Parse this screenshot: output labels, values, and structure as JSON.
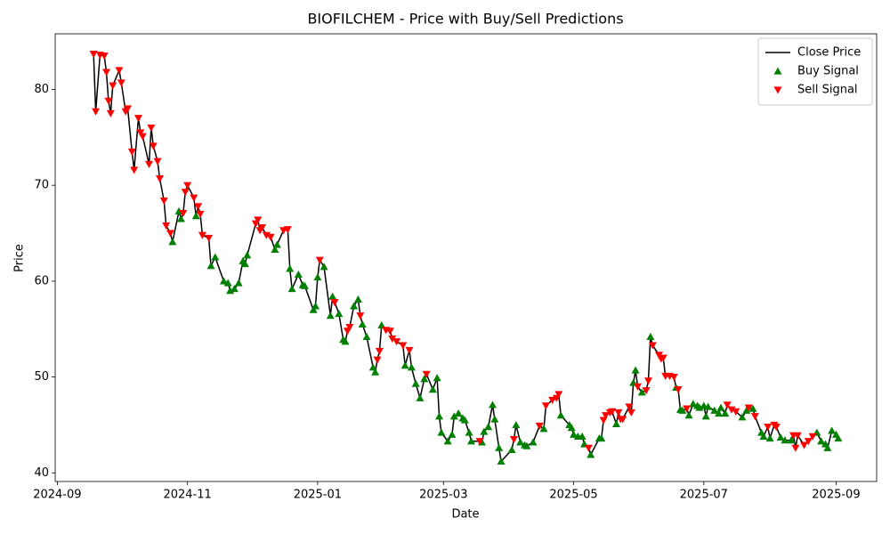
{
  "chart_data": {
    "type": "line",
    "title": "BIOFILCHEM - Price with Buy/Sell Predictions",
    "x_label": "Date",
    "y_label": "Price",
    "xlim": [
      "2024-08-31",
      "2025-09-20"
    ],
    "xticks": [
      {
        "value": "2024-09-01",
        "label": "2024-09"
      },
      {
        "value": "2024-11-01",
        "label": "2024-11"
      },
      {
        "value": "2025-01-01",
        "label": "2025-01"
      },
      {
        "value": "2025-03-01",
        "label": "2025-03"
      },
      {
        "value": "2025-05-01",
        "label": "2025-05"
      },
      {
        "value": "2025-07-01",
        "label": "2025-07"
      },
      {
        "value": "2025-09-01",
        "label": "2025-09"
      }
    ],
    "ylim": [
      39.1,
      85.8
    ],
    "yticks": [
      40,
      50,
      60,
      70,
      80
    ],
    "grid": false,
    "legend": "upper right",
    "series": [
      {
        "name": "Close Price",
        "type": "line",
        "color": "#000000",
        "x": [
          "2024-09-18",
          "2024-09-19",
          "2024-09-21",
          "2024-09-23",
          "2024-09-24",
          "2024-09-25",
          "2024-09-26",
          "2024-09-27",
          "2024-09-30",
          "2024-10-01",
          "2024-10-03",
          "2024-10-04",
          "2024-10-06",
          "2024-10-07",
          "2024-10-09",
          "2024-10-10",
          "2024-10-11",
          "2024-10-14",
          "2024-10-15",
          "2024-10-16",
          "2024-10-18",
          "2024-10-19",
          "2024-10-21",
          "2024-10-22",
          "2024-10-24",
          "2024-10-25",
          "2024-10-28",
          "2024-10-29",
          "2024-10-30",
          "2024-10-31",
          "2024-11-01",
          "2024-11-04",
          "2024-11-05",
          "2024-11-06",
          "2024-11-07",
          "2024-11-08",
          "2024-11-11",
          "2024-11-12",
          "2024-11-14",
          "2024-11-18",
          "2024-11-20",
          "2024-11-21",
          "2024-11-23",
          "2024-11-25",
          "2024-11-27",
          "2024-11-28",
          "2024-11-29",
          "2024-12-03",
          "2024-12-04",
          "2024-12-05",
          "2024-12-06",
          "2024-12-08",
          "2024-12-10",
          "2024-12-12",
          "2024-12-13",
          "2024-12-16",
          "2024-12-18",
          "2024-12-19",
          "2024-12-20",
          "2024-12-23",
          "2024-12-25",
          "2024-12-26",
          "2024-12-30",
          "2024-12-31",
          "2025-01-01",
          "2025-01-02",
          "2025-01-04",
          "2025-01-07",
          "2025-01-08",
          "2025-01-09",
          "2025-01-11",
          "2025-01-13",
          "2025-01-14",
          "2025-01-15",
          "2025-01-16",
          "2025-01-18",
          "2025-01-20",
          "2025-01-21",
          "2025-01-22",
          "2025-01-24",
          "2025-01-27",
          "2025-01-28",
          "2025-01-29",
          "2025-01-30",
          "2025-01-31",
          "2025-02-02",
          "2025-02-04",
          "2025-02-05",
          "2025-02-07",
          "2025-02-10",
          "2025-02-11",
          "2025-02-13",
          "2025-02-14",
          "2025-02-16",
          "2025-02-18",
          "2025-02-20",
          "2025-02-21",
          "2025-02-24",
          "2025-02-26",
          "2025-02-27",
          "2025-02-28",
          "2025-03-03",
          "2025-03-05",
          "2025-03-06",
          "2025-03-08",
          "2025-03-10",
          "2025-03-11",
          "2025-03-13",
          "2025-03-14",
          "2025-03-18",
          "2025-03-19",
          "2025-03-20",
          "2025-03-22",
          "2025-03-24",
          "2025-03-25",
          "2025-03-27",
          "2025-03-28",
          "2025-04-02",
          "2025-04-03",
          "2025-04-04",
          "2025-04-06",
          "2025-04-08",
          "2025-04-09",
          "2025-04-12",
          "2025-04-15",
          "2025-04-17",
          "2025-04-18",
          "2025-04-21",
          "2025-04-23",
          "2025-04-24",
          "2025-04-25",
          "2025-04-29",
          "2025-04-30",
          "2025-05-01",
          "2025-05-03",
          "2025-05-05",
          "2025-05-06",
          "2025-05-08",
          "2025-05-09",
          "2025-05-13",
          "2025-05-14",
          "2025-05-15",
          "2025-05-16",
          "2025-05-18",
          "2025-05-19",
          "2025-05-21",
          "2025-05-22",
          "2025-05-23",
          "2025-05-24",
          "2025-05-27",
          "2025-05-28",
          "2025-05-29",
          "2025-05-30",
          "2025-05-31",
          "2025-06-02",
          "2025-06-04",
          "2025-06-05",
          "2025-06-06",
          "2025-06-07",
          "2025-06-10",
          "2025-06-11",
          "2025-06-12",
          "2025-06-13",
          "2025-06-15",
          "2025-06-17",
          "2025-06-18",
          "2025-06-19",
          "2025-06-20",
          "2025-06-21",
          "2025-06-23",
          "2025-06-24",
          "2025-06-26",
          "2025-06-28",
          "2025-06-29",
          "2025-07-01",
          "2025-07-02",
          "2025-07-03",
          "2025-07-06",
          "2025-07-08",
          "2025-07-09",
          "2025-07-11",
          "2025-07-12",
          "2025-07-14",
          "2025-07-16",
          "2025-07-19",
          "2025-07-21",
          "2025-07-22",
          "2025-07-24",
          "2025-07-25",
          "2025-07-28",
          "2025-07-29",
          "2025-07-31",
          "2025-08-01",
          "2025-08-03",
          "2025-08-04",
          "2025-08-06",
          "2025-08-08",
          "2025-08-11",
          "2025-08-12",
          "2025-08-13",
          "2025-08-14",
          "2025-08-17",
          "2025-08-19",
          "2025-08-21",
          "2025-08-23",
          "2025-08-25",
          "2025-08-27",
          "2025-08-28",
          "2025-08-30",
          "2025-09-01",
          "2025-09-02"
        ],
        "values": [
          83.7,
          77.7,
          83.6,
          83.5,
          81.8,
          78.8,
          77.5,
          80.4,
          82.0,
          80.7,
          77.7,
          78.0,
          73.5,
          71.6,
          77.0,
          75.5,
          75.1,
          72.2,
          76.0,
          74.1,
          72.5,
          70.7,
          68.4,
          65.8,
          65.0,
          64.1,
          67.3,
          66.5,
          67.1,
          69.3,
          70.0,
          68.7,
          66.8,
          67.8,
          67.0,
          64.8,
          64.5,
          61.6,
          62.5,
          60.0,
          59.8,
          59.0,
          59.2,
          59.8,
          62.1,
          61.8,
          62.7,
          66.0,
          66.4,
          65.3,
          65.6,
          64.8,
          64.6,
          63.3,
          63.8,
          65.3,
          65.4,
          61.3,
          59.2,
          60.7,
          59.6,
          59.5,
          57.0,
          57.4,
          60.4,
          62.2,
          61.5,
          56.4,
          58.4,
          57.8,
          56.6,
          53.9,
          53.7,
          54.8,
          55.2,
          57.4,
          58.1,
          56.4,
          55.5,
          54.2,
          51.0,
          50.5,
          51.8,
          52.7,
          55.4,
          54.9,
          54.8,
          54.0,
          53.7,
          53.3,
          51.2,
          52.8,
          51.0,
          49.3,
          47.8,
          49.8,
          50.3,
          48.7,
          49.9,
          45.9,
          44.2,
          43.3,
          44.0,
          45.9,
          46.2,
          45.7,
          45.5,
          44.2,
          43.3,
          43.3,
          43.2,
          44.3,
          44.8,
          47.1,
          45.6,
          42.6,
          41.2,
          42.4,
          43.5,
          45.0,
          43.2,
          42.9,
          42.8,
          43.2,
          44.9,
          44.6,
          47.0,
          47.6,
          47.8,
          48.2,
          46.0,
          45.0,
          44.7,
          44.0,
          43.8,
          43.8,
          43.0,
          42.6,
          41.9,
          43.6,
          43.6,
          45.5,
          46.0,
          46.3,
          46.4,
          45.1,
          46.3,
          45.6,
          45.6,
          46.9,
          46.3,
          49.4,
          50.7,
          49.0,
          48.4,
          48.6,
          49.6,
          54.2,
          53.3,
          52.3,
          51.9,
          52.0,
          50.1,
          50.1,
          50.0,
          48.9,
          48.7,
          46.6,
          46.5,
          46.7,
          46.0,
          47.2,
          47.0,
          46.8,
          47.0,
          45.9,
          46.9,
          46.5,
          46.2,
          46.8,
          46.2,
          47.1,
          46.6,
          46.4,
          45.8,
          46.5,
          46.8,
          46.7,
          45.9,
          44.2,
          43.8,
          44.8,
          43.6,
          45.0,
          44.8,
          43.7,
          43.4,
          43.4,
          43.9,
          42.6,
          43.9,
          42.9,
          43.3,
          43.8,
          44.2,
          43.3,
          43.0,
          42.6,
          44.4,
          44.0,
          43.6
        ]
      },
      {
        "name": "Buy Signal",
        "type": "scatter",
        "marker": "triangle-up",
        "color": "#008000",
        "x": [
          "2024-10-25",
          "2024-10-28",
          "2024-10-29",
          "2024-11-05",
          "2024-11-12",
          "2024-11-14",
          "2024-11-18",
          "2024-11-20",
          "2024-11-21",
          "2024-11-23",
          "2024-11-25",
          "2024-11-27",
          "2024-11-28",
          "2024-11-29",
          "2024-12-12",
          "2024-12-13",
          "2024-12-19",
          "2024-12-20",
          "2024-12-23",
          "2024-12-25",
          "2024-12-26",
          "2024-12-30",
          "2024-12-31",
          "2025-01-01",
          "2025-01-04",
          "2025-01-07",
          "2025-01-08",
          "2025-01-11",
          "2025-01-13",
          "2025-01-14",
          "2025-01-18",
          "2025-01-20",
          "2025-01-22",
          "2025-01-24",
          "2025-01-27",
          "2025-01-28",
          "2025-01-31",
          "2025-02-11",
          "2025-02-14",
          "2025-02-16",
          "2025-02-18",
          "2025-02-20",
          "2025-02-24",
          "2025-02-26",
          "2025-02-27",
          "2025-02-28",
          "2025-03-03",
          "2025-03-05",
          "2025-03-06",
          "2025-03-08",
          "2025-03-10",
          "2025-03-11",
          "2025-03-13",
          "2025-03-14",
          "2025-03-19",
          "2025-03-20",
          "2025-03-22",
          "2025-03-24",
          "2025-03-25",
          "2025-03-27",
          "2025-03-28",
          "2025-04-02",
          "2025-04-04",
          "2025-04-06",
          "2025-04-08",
          "2025-04-09",
          "2025-04-12",
          "2025-04-17",
          "2025-04-25",
          "2025-04-29",
          "2025-04-30",
          "2025-05-01",
          "2025-05-03",
          "2025-05-05",
          "2025-05-06",
          "2025-05-09",
          "2025-05-13",
          "2025-05-14",
          "2025-05-21",
          "2025-05-29",
          "2025-05-30",
          "2025-06-02",
          "2025-06-06",
          "2025-06-18",
          "2025-06-20",
          "2025-06-21",
          "2025-06-24",
          "2025-06-26",
          "2025-06-28",
          "2025-06-29",
          "2025-07-01",
          "2025-07-02",
          "2025-07-03",
          "2025-07-06",
          "2025-07-08",
          "2025-07-09",
          "2025-07-11",
          "2025-07-19",
          "2025-07-21",
          "2025-07-24",
          "2025-07-28",
          "2025-07-29",
          "2025-08-01",
          "2025-08-06",
          "2025-08-08",
          "2025-08-11",
          "2025-08-23",
          "2025-08-25",
          "2025-08-27",
          "2025-08-28",
          "2025-08-30",
          "2025-09-01",
          "2025-09-02"
        ],
        "values": [
          64.1,
          67.3,
          66.5,
          66.8,
          61.6,
          62.5,
          60.0,
          59.8,
          59.0,
          59.2,
          59.8,
          62.1,
          61.8,
          62.7,
          63.3,
          63.8,
          61.3,
          59.2,
          60.7,
          59.6,
          59.5,
          57.0,
          57.4,
          60.4,
          61.5,
          56.4,
          58.4,
          56.6,
          53.9,
          53.7,
          57.4,
          58.1,
          55.5,
          54.2,
          51.0,
          50.5,
          55.4,
          51.2,
          51.0,
          49.3,
          47.8,
          49.8,
          48.7,
          49.9,
          45.9,
          44.2,
          43.3,
          44.0,
          45.9,
          46.2,
          45.7,
          45.5,
          44.2,
          43.3,
          43.2,
          44.3,
          44.8,
          47.1,
          45.6,
          42.6,
          41.2,
          42.4,
          45.0,
          43.2,
          42.9,
          42.8,
          43.2,
          44.6,
          46.0,
          45.0,
          44.7,
          44.0,
          43.8,
          43.8,
          43.0,
          41.9,
          43.6,
          43.6,
          45.1,
          49.4,
          50.7,
          48.4,
          54.2,
          48.9,
          46.6,
          46.5,
          46.0,
          47.2,
          47.0,
          46.8,
          47.0,
          45.9,
          46.9,
          46.5,
          46.2,
          46.8,
          46.2,
          45.8,
          46.5,
          46.7,
          44.2,
          43.8,
          43.6,
          43.7,
          43.4,
          43.4,
          44.2,
          43.3,
          43.0,
          42.6,
          44.4,
          44.0,
          43.6
        ]
      },
      {
        "name": "Sell Signal",
        "type": "scatter",
        "marker": "triangle-down",
        "color": "#ff0000",
        "x": [
          "2024-09-18",
          "2024-09-19",
          "2024-09-21",
          "2024-09-23",
          "2024-09-24",
          "2024-09-25",
          "2024-09-26",
          "2024-09-27",
          "2024-09-30",
          "2024-10-01",
          "2024-10-03",
          "2024-10-04",
          "2024-10-06",
          "2024-10-07",
          "2024-10-09",
          "2024-10-10",
          "2024-10-11",
          "2024-10-14",
          "2024-10-15",
          "2024-10-16",
          "2024-10-18",
          "2024-10-19",
          "2024-10-21",
          "2024-10-22",
          "2024-10-24",
          "2024-10-30",
          "2024-10-31",
          "2024-11-01",
          "2024-11-04",
          "2024-11-06",
          "2024-11-07",
          "2024-11-08",
          "2024-11-11",
          "2024-12-03",
          "2024-12-04",
          "2024-12-05",
          "2024-12-06",
          "2024-12-08",
          "2024-12-10",
          "2024-12-16",
          "2024-12-18",
          "2025-01-02",
          "2025-01-09",
          "2025-01-15",
          "2025-01-16",
          "2025-01-21",
          "2025-01-29",
          "2025-01-30",
          "2025-02-02",
          "2025-02-04",
          "2025-02-05",
          "2025-02-07",
          "2025-02-10",
          "2025-02-13",
          "2025-02-21",
          "2025-03-18",
          "2025-04-03",
          "2025-04-15",
          "2025-04-18",
          "2025-04-21",
          "2025-04-23",
          "2025-04-24",
          "2025-05-08",
          "2025-05-15",
          "2025-05-16",
          "2025-05-18",
          "2025-05-19",
          "2025-05-22",
          "2025-05-23",
          "2025-05-24",
          "2025-05-27",
          "2025-05-28",
          "2025-05-31",
          "2025-06-04",
          "2025-06-05",
          "2025-06-07",
          "2025-06-10",
          "2025-06-11",
          "2025-06-12",
          "2025-06-13",
          "2025-06-15",
          "2025-06-17",
          "2025-06-19",
          "2025-06-23",
          "2025-07-12",
          "2025-07-14",
          "2025-07-16",
          "2025-07-22",
          "2025-07-25",
          "2025-07-31",
          "2025-08-03",
          "2025-08-04",
          "2025-08-12",
          "2025-08-13",
          "2025-08-14",
          "2025-08-17",
          "2025-08-19",
          "2025-08-21"
        ],
        "values": [
          83.7,
          77.7,
          83.6,
          83.5,
          81.8,
          78.8,
          77.5,
          80.4,
          82.0,
          80.7,
          77.7,
          78.0,
          73.5,
          71.6,
          77.0,
          75.5,
          75.1,
          72.2,
          76.0,
          74.1,
          72.5,
          70.7,
          68.4,
          65.8,
          65.0,
          67.1,
          69.3,
          70.0,
          68.7,
          67.8,
          67.0,
          64.8,
          64.5,
          66.0,
          66.4,
          65.3,
          65.6,
          64.8,
          64.6,
          65.3,
          65.4,
          62.2,
          57.8,
          54.8,
          55.2,
          56.4,
          51.8,
          52.7,
          54.9,
          54.8,
          54.0,
          53.7,
          53.3,
          52.8,
          50.3,
          43.3,
          43.5,
          44.9,
          47.0,
          47.6,
          47.8,
          48.2,
          42.6,
          45.5,
          46.0,
          46.3,
          46.4,
          46.3,
          45.6,
          45.6,
          46.9,
          46.3,
          49.0,
          48.6,
          49.6,
          53.3,
          52.3,
          51.9,
          52.0,
          50.1,
          50.1,
          50.0,
          48.7,
          46.7,
          47.1,
          46.6,
          46.4,
          46.8,
          45.9,
          44.8,
          45.0,
          44.8,
          43.9,
          42.6,
          43.9,
          42.9,
          43.3,
          43.8
        ]
      }
    ]
  }
}
